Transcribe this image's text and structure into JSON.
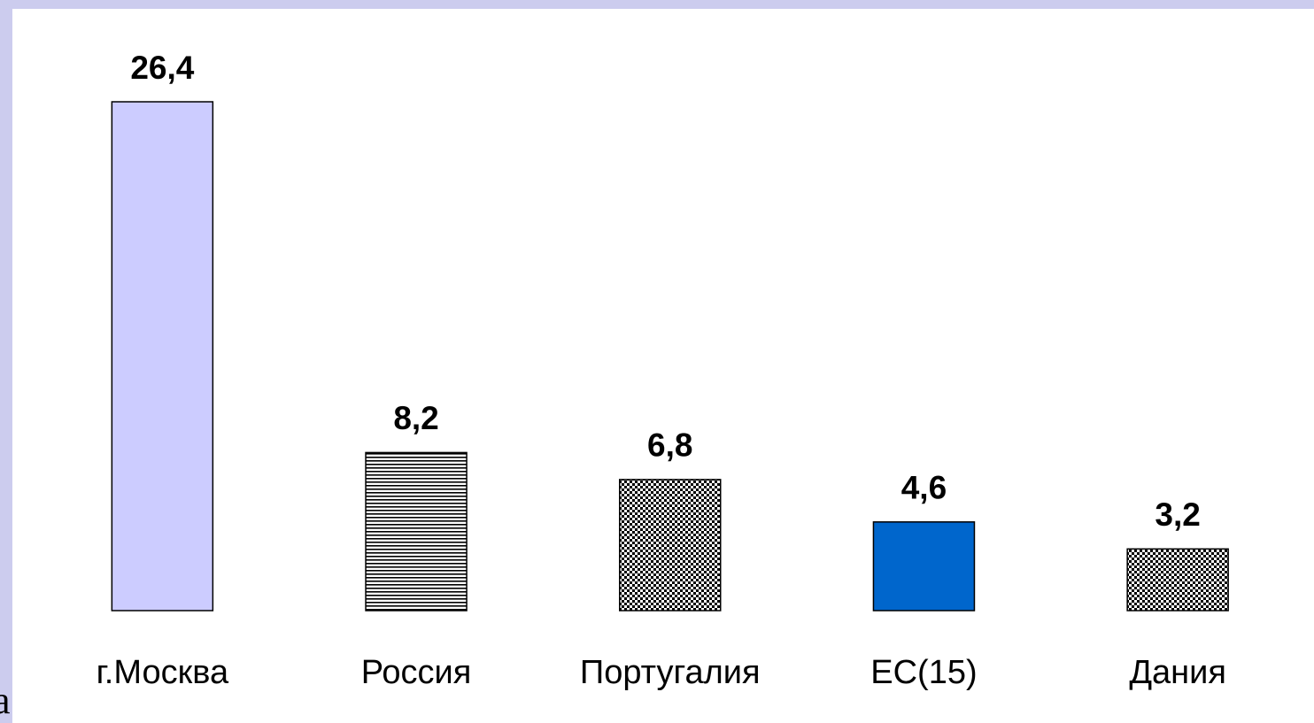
{
  "chart_data": {
    "type": "bar",
    "categories": [
      "г.Москва",
      "Россия",
      "Португалия",
      "ЕС(15)",
      "Дания"
    ],
    "values": [
      26.4,
      8.2,
      6.8,
      4.6,
      3.2
    ],
    "value_labels": [
      "26,4",
      "8,2",
      "6,8",
      "4,6",
      "3,2"
    ],
    "colors": [
      "#ccccff",
      "#1a1a80",
      "#1a1a9a",
      "#0066cc",
      "#1a1aa0"
    ],
    "patterns": [
      "solid",
      "horizontal-stripes",
      "checker",
      "solid",
      "checker"
    ],
    "annotations": [
      "a"
    ]
  }
}
